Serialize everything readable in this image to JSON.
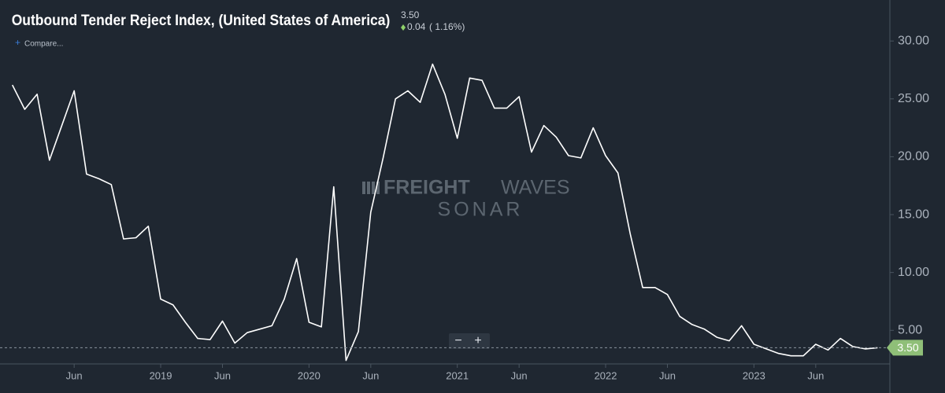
{
  "chart_data": {
    "type": "line",
    "title": "Outbound Tender Reject Index, (United States of America)",
    "current": {
      "value": 3.5,
      "label": "3.50"
    },
    "change": "0.04",
    "change_pct": "( 1.16%)",
    "compare_label": "Compare...",
    "watermark": [
      "FREIGHT",
      "WAVES",
      "SONAR"
    ],
    "color": "#ffffff",
    "x": [
      "2018-01",
      "2018-02",
      "2018-03",
      "2018-04",
      "2018-05",
      "2018-06",
      "2018-07",
      "2018-08",
      "2018-09",
      "2018-10",
      "2018-11",
      "2018-12",
      "2019-01",
      "2019-02",
      "2019-03",
      "2019-04",
      "2019-05",
      "2019-06",
      "2019-07",
      "2019-08",
      "2019-09",
      "2019-10",
      "2019-11",
      "2019-12",
      "2020-01",
      "2020-02",
      "2020-03",
      "2020-04",
      "2020-05",
      "2020-06",
      "2020-07",
      "2020-08",
      "2020-09",
      "2020-10",
      "2020-11",
      "2020-12",
      "2021-01",
      "2021-02",
      "2021-03",
      "2021-04",
      "2021-05",
      "2021-06",
      "2021-07",
      "2021-08",
      "2021-09",
      "2021-10",
      "2021-11",
      "2021-12",
      "2022-01",
      "2022-02",
      "2022-03",
      "2022-04",
      "2022-05",
      "2022-06",
      "2022-07",
      "2022-08",
      "2022-09",
      "2022-10",
      "2022-11",
      "2022-12",
      "2023-01",
      "2023-02",
      "2023-03",
      "2023-04",
      "2023-05",
      "2023-06",
      "2023-07",
      "2023-08",
      "2023-09",
      "2023-10",
      "2023-11"
    ],
    "values": [
      26.2,
      24.1,
      25.4,
      19.7,
      22.7,
      25.7,
      18.5,
      18.1,
      17.6,
      12.9,
      13.0,
      14.0,
      7.7,
      7.2,
      5.7,
      4.3,
      4.2,
      5.8,
      3.9,
      4.8,
      5.1,
      5.4,
      7.7,
      11.2,
      5.7,
      5.3,
      17.4,
      2.4,
      4.9,
      15.2,
      19.9,
      25.0,
      25.7,
      24.7,
      28.0,
      25.4,
      21.6,
      26.8,
      26.6,
      24.2,
      24.2,
      25.2,
      20.4,
      22.7,
      21.7,
      20.1,
      19.9,
      22.5,
      20.1,
      18.6,
      13.3,
      8.7,
      8.7,
      8.1,
      6.2,
      5.5,
      5.1,
      4.4,
      4.1,
      5.4,
      3.8,
      3.4,
      3.0,
      2.8,
      2.8,
      3.8,
      3.3,
      4.3,
      3.6,
      3.4,
      3.5
    ],
    "xlim": [
      "2017-12",
      "2023-12"
    ],
    "xticks": [
      {
        "value": "2018-06",
        "label": "Jun"
      },
      {
        "value": "2019-01",
        "label": "2019"
      },
      {
        "value": "2019-06",
        "label": "Jun"
      },
      {
        "value": "2020-01",
        "label": "2020"
      },
      {
        "value": "2020-06",
        "label": "Jun"
      },
      {
        "value": "2021-01",
        "label": "2021"
      },
      {
        "value": "2021-06",
        "label": "Jun"
      },
      {
        "value": "2022-01",
        "label": "2022"
      },
      {
        "value": "2022-06",
        "label": "Jun"
      },
      {
        "value": "2023-01",
        "label": "2023"
      },
      {
        "value": "2023-06",
        "label": "Jun"
      }
    ],
    "ylim": [
      2.1,
      33
    ],
    "yticks": [
      {
        "value": 5,
        "label": "5.00"
      },
      {
        "value": 10,
        "label": "10.00"
      },
      {
        "value": 15,
        "label": "15.00"
      },
      {
        "value": 20,
        "label": "20.00"
      },
      {
        "value": 25,
        "label": "25.00"
      },
      {
        "value": 30,
        "label": "30.00"
      }
    ],
    "grid": false
  }
}
